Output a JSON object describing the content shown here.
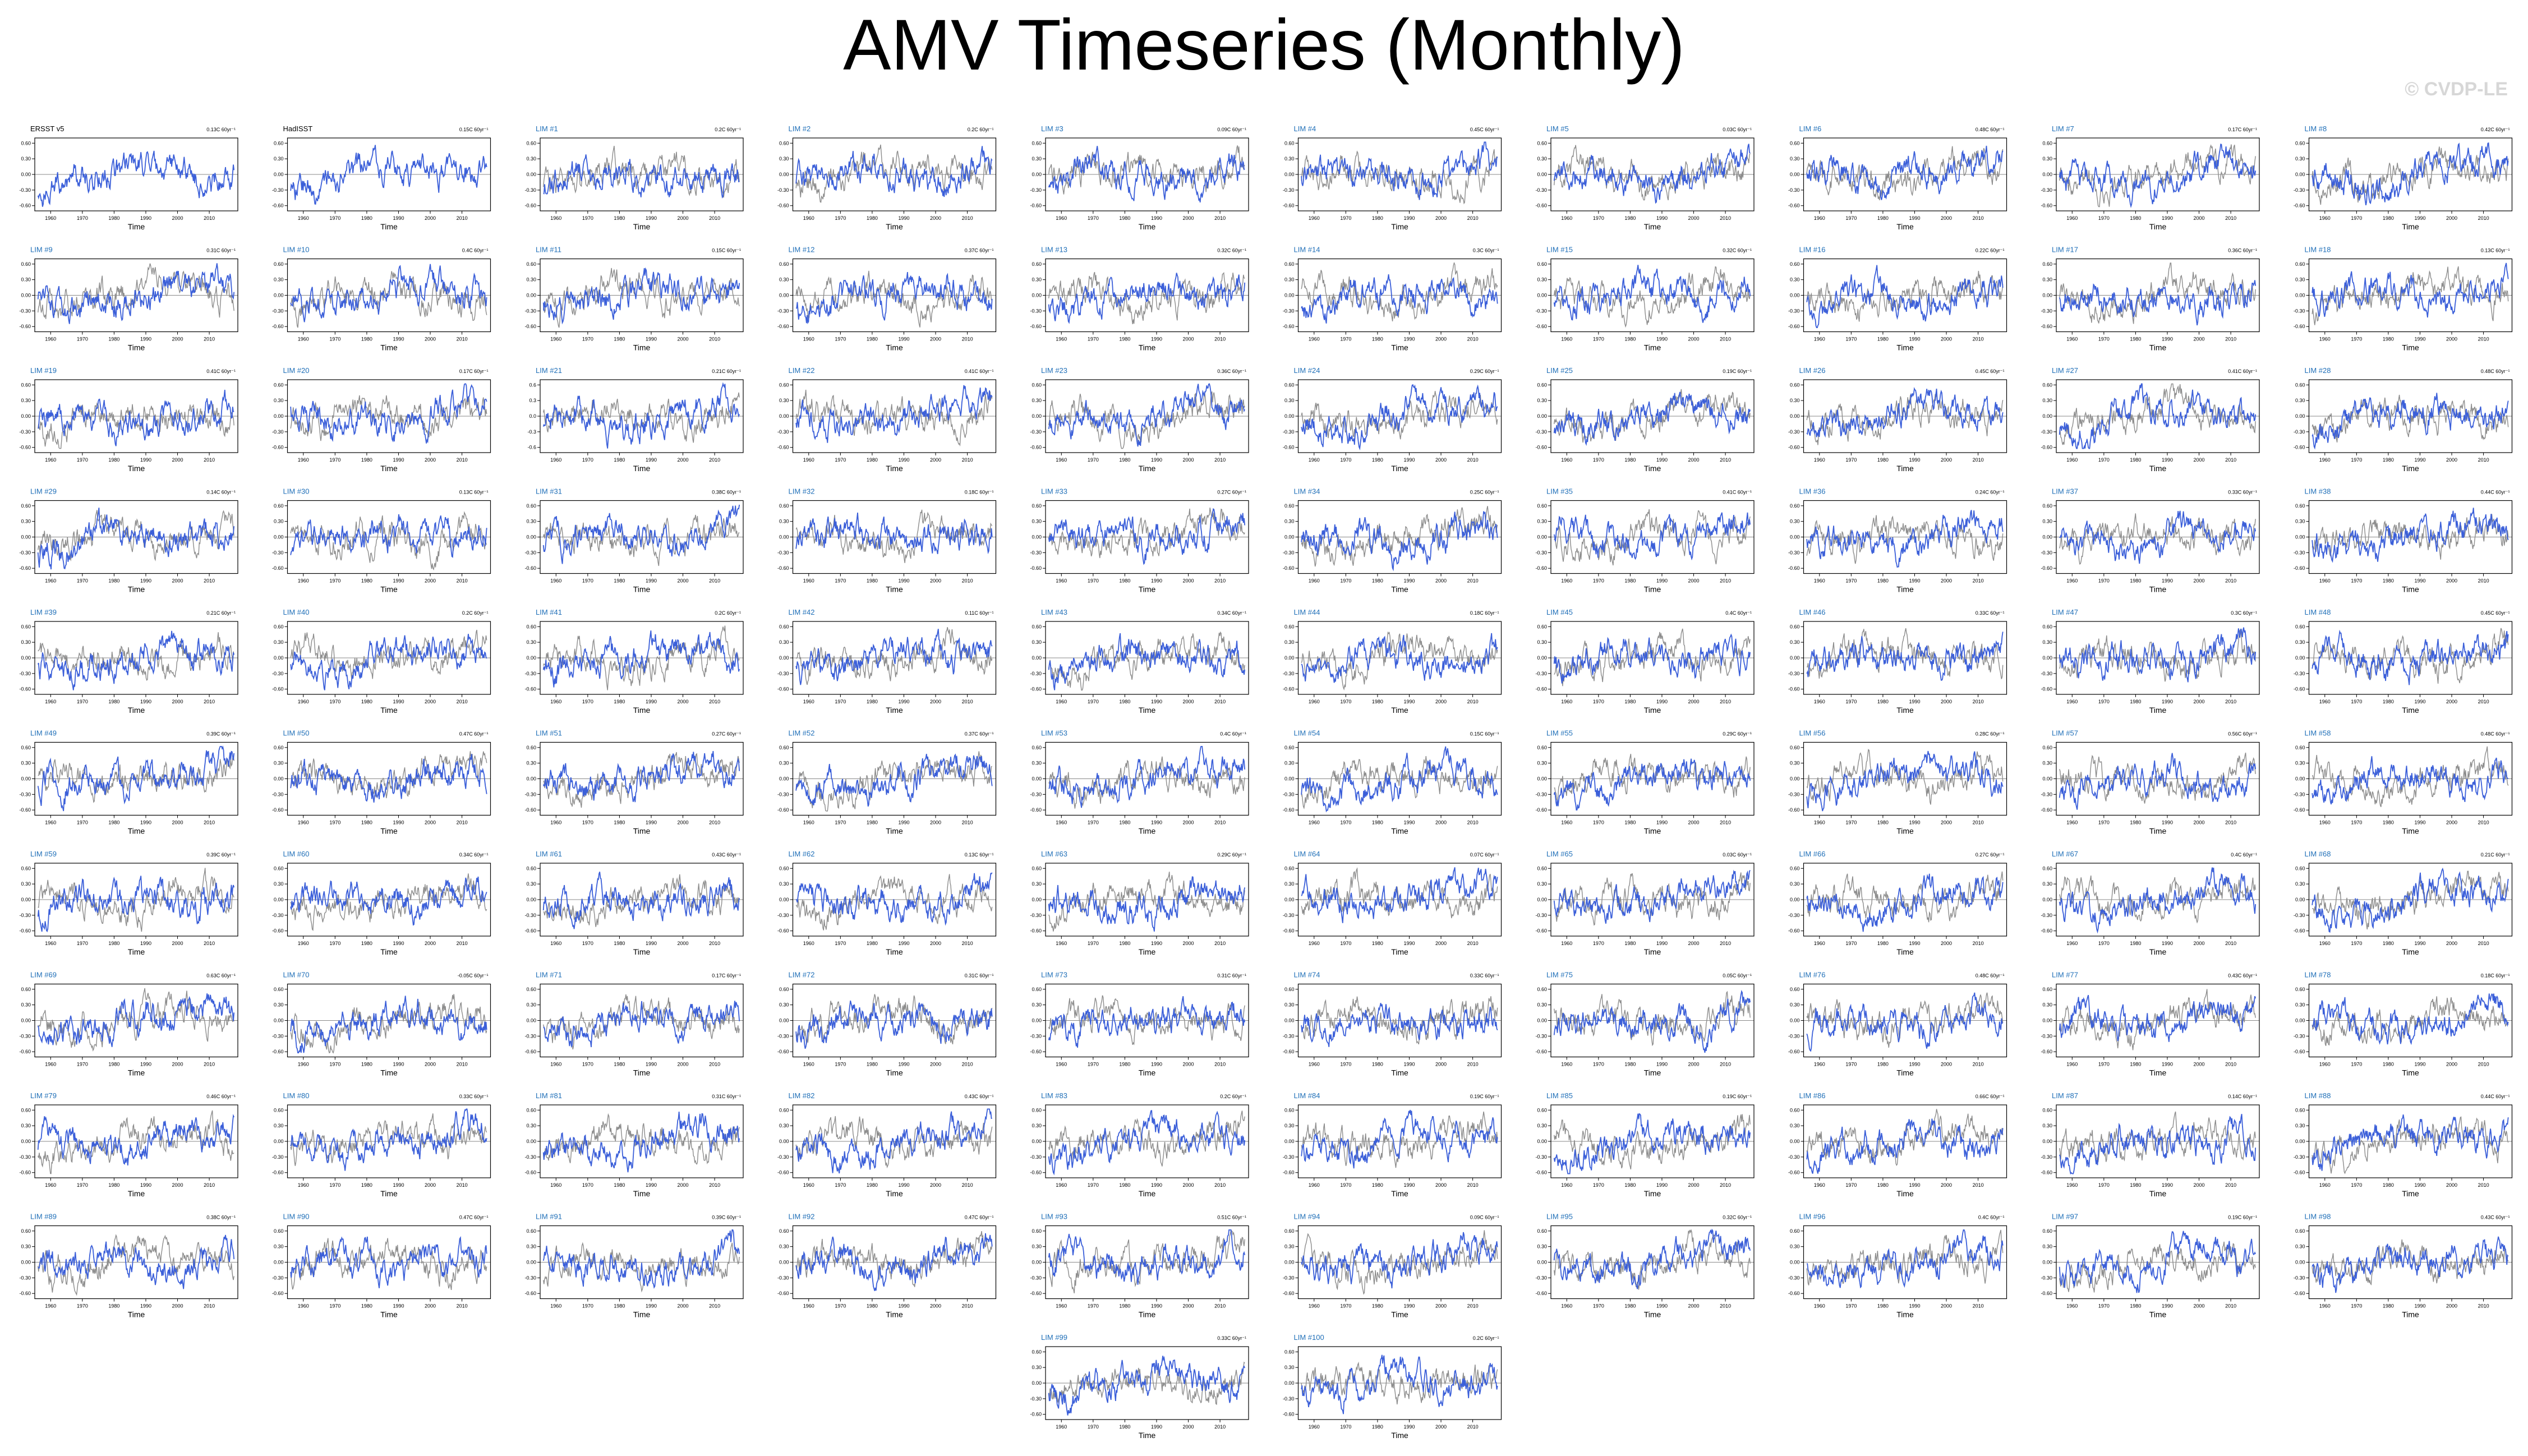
{
  "title": "AMV Timeseries (Monthly)",
  "watermark": "© CVDP-LE",
  "colors": {
    "model_line": "#3b5fd9",
    "obs_line": "#8c8c8c",
    "reference_obs": "#000000",
    "label_lim": "#1f6fb8",
    "axis": "#000000"
  },
  "chart_data": {
    "type": "line",
    "layout": "small multiples",
    "xlabel": "Time",
    "xticks": [
      "1960",
      "1970",
      "1980",
      "1990",
      "2000",
      "2010"
    ],
    "xlim": [
      1955,
      2019
    ],
    "yticks_default": [
      "0.60",
      "0.30",
      "0.00",
      "-0.30",
      "-0.60"
    ],
    "ylim": [
      -0.7,
      0.7
    ],
    "panels": [
      {
        "label": "ERSST v5",
        "trend": "0.13C 60yr⁻¹",
        "yticks": [
          "0.60",
          "0.30",
          "0.00",
          "-0.30",
          "-0.60"
        ]
      },
      {
        "label": "HadISST",
        "trend": "0.15C 60yr⁻¹",
        "yticks": [
          "0.60",
          "0.30",
          "0.00",
          "-0.30",
          "-0.60"
        ]
      },
      {
        "label": "LIM #1",
        "trend": "0.2C 60yr⁻¹"
      },
      {
        "label": "LIM #2",
        "trend": "0.2C 60yr⁻¹"
      },
      {
        "label": "LIM #3",
        "trend": "0.09C 60yr⁻¹"
      },
      {
        "label": "LIM #4",
        "trend": "0.45C 60yr⁻¹"
      },
      {
        "label": "LIM #5",
        "trend": "0.03C 60yr⁻¹"
      },
      {
        "label": "LIM #6",
        "trend": "0.48C 60yr⁻¹"
      },
      {
        "label": "LIM #7",
        "trend": "0.17C 60yr⁻¹"
      },
      {
        "label": "LIM #8",
        "trend": "0.42C 60yr⁻¹"
      },
      {
        "label": "LIM #9",
        "trend": "0.31C 60yr⁻¹"
      },
      {
        "label": "LIM #10",
        "trend": "0.4C 60yr⁻¹"
      },
      {
        "label": "LIM #11",
        "trend": "0.15C 60yr⁻¹"
      },
      {
        "label": "LIM #12",
        "trend": "0.37C 60yr⁻¹"
      },
      {
        "label": "LIM #13",
        "trend": "0.32C 60yr⁻¹"
      },
      {
        "label": "LIM #14",
        "trend": "0.3C 60yr⁻¹"
      },
      {
        "label": "LIM #15",
        "trend": "0.32C 60yr⁻¹"
      },
      {
        "label": "LIM #16",
        "trend": "0.22C 60yr⁻¹"
      },
      {
        "label": "LIM #17",
        "trend": "0.36C 60yr⁻¹"
      },
      {
        "label": "LIM #18",
        "trend": "0.13C 60yr⁻¹"
      },
      {
        "label": "LIM #19",
        "trend": "0.41C 60yr⁻¹"
      },
      {
        "label": "LIM #20",
        "trend": "0.17C 60yr⁻¹"
      },
      {
        "label": "LIM #21",
        "trend": "0.21C 60yr⁻¹",
        "yticks": [
          "0.6",
          "0.3",
          "0.0",
          "-0.3",
          "-0.6"
        ]
      },
      {
        "label": "LIM #22",
        "trend": "0.41C 60yr⁻¹"
      },
      {
        "label": "LIM #23",
        "trend": "0.36C 60yr⁻¹"
      },
      {
        "label": "LIM #24",
        "trend": "0.29C 60yr⁻¹"
      },
      {
        "label": "LIM #25",
        "trend": "0.19C 60yr⁻¹"
      },
      {
        "label": "LIM #26",
        "trend": "0.45C 60yr⁻¹"
      },
      {
        "label": "LIM #27",
        "trend": "0.41C 60yr⁻¹"
      },
      {
        "label": "LIM #28",
        "trend": "0.48C 60yr⁻¹"
      },
      {
        "label": "LIM #29",
        "trend": "0.14C 60yr⁻¹"
      },
      {
        "label": "LIM #30",
        "trend": "0.13C 60yr⁻¹"
      },
      {
        "label": "LIM #31",
        "trend": "0.38C 60yr⁻¹"
      },
      {
        "label": "LIM #32",
        "trend": "0.18C 60yr⁻¹"
      },
      {
        "label": "LIM #33",
        "trend": "0.27C 60yr⁻¹"
      },
      {
        "label": "LIM #34",
        "trend": "0.25C 60yr⁻¹"
      },
      {
        "label": "LIM #35",
        "trend": "0.41C 60yr⁻¹"
      },
      {
        "label": "LIM #36",
        "trend": "0.24C 60yr⁻¹"
      },
      {
        "label": "LIM #37",
        "trend": "0.33C 60yr⁻¹"
      },
      {
        "label": "LIM #38",
        "trend": "0.44C 60yr⁻¹"
      },
      {
        "label": "LIM #39",
        "trend": "0.21C 60yr⁻¹"
      },
      {
        "label": "LIM #40",
        "trend": "0.2C 60yr⁻¹"
      },
      {
        "label": "LIM #41",
        "trend": "0.2C 60yr⁻¹"
      },
      {
        "label": "LIM #42",
        "trend": "0.11C 60yr⁻¹"
      },
      {
        "label": "LIM #43",
        "trend": "0.34C 60yr⁻¹"
      },
      {
        "label": "LIM #44",
        "trend": "0.18C 60yr⁻¹"
      },
      {
        "label": "LIM #45",
        "trend": "0.4C 60yr⁻¹"
      },
      {
        "label": "LIM #46",
        "trend": "0.33C 60yr⁻¹"
      },
      {
        "label": "LIM #47",
        "trend": "0.3C 60yr⁻¹"
      },
      {
        "label": "LIM #48",
        "trend": "0.45C 60yr⁻¹"
      },
      {
        "label": "LIM #49",
        "trend": "0.39C 60yr⁻¹"
      },
      {
        "label": "LIM #50",
        "trend": "0.47C 60yr⁻¹"
      },
      {
        "label": "LIM #51",
        "trend": "0.27C 60yr⁻¹"
      },
      {
        "label": "LIM #52",
        "trend": "0.37C 60yr⁻¹"
      },
      {
        "label": "LIM #53",
        "trend": "0.4C 60yr⁻¹"
      },
      {
        "label": "LIM #54",
        "trend": "0.15C 60yr⁻¹"
      },
      {
        "label": "LIM #55",
        "trend": "0.29C 60yr⁻¹"
      },
      {
        "label": "LIM #56",
        "trend": "0.28C 60yr⁻¹"
      },
      {
        "label": "LIM #57",
        "trend": "0.56C 60yr⁻¹"
      },
      {
        "label": "LIM #58",
        "trend": "0.48C 60yr⁻¹"
      },
      {
        "label": "LIM #59",
        "trend": "0.39C 60yr⁻¹"
      },
      {
        "label": "LIM #60",
        "trend": "0.34C 60yr⁻¹"
      },
      {
        "label": "LIM #61",
        "trend": "0.43C 60yr⁻¹"
      },
      {
        "label": "LIM #62",
        "trend": "0.13C 60yr⁻¹"
      },
      {
        "label": "LIM #63",
        "trend": "0.29C 60yr⁻¹"
      },
      {
        "label": "LIM #64",
        "trend": "0.07C 60yr⁻¹"
      },
      {
        "label": "LIM #65",
        "trend": "0.03C 60yr⁻¹"
      },
      {
        "label": "LIM #66",
        "trend": "0.27C 60yr⁻¹"
      },
      {
        "label": "LIM #67",
        "trend": "0.4C 60yr⁻¹"
      },
      {
        "label": "LIM #68",
        "trend": "0.21C 60yr⁻¹"
      },
      {
        "label": "LIM #69",
        "trend": "0.63C 60yr⁻¹"
      },
      {
        "label": "LIM #70",
        "trend": "-0.05C 60yr⁻¹"
      },
      {
        "label": "LIM #71",
        "trend": "0.17C 60yr⁻¹"
      },
      {
        "label": "LIM #72",
        "trend": "0.31C 60yr⁻¹"
      },
      {
        "label": "LIM #73",
        "trend": "0.31C 60yr⁻¹"
      },
      {
        "label": "LIM #74",
        "trend": "0.33C 60yr⁻¹"
      },
      {
        "label": "LIM #75",
        "trend": "0.05C 60yr⁻¹"
      },
      {
        "label": "LIM #76",
        "trend": "0.48C 60yr⁻¹"
      },
      {
        "label": "LIM #77",
        "trend": "0.43C 60yr⁻¹"
      },
      {
        "label": "LIM #78",
        "trend": "0.18C 60yr⁻¹"
      },
      {
        "label": "LIM #79",
        "trend": "0.46C 60yr⁻¹"
      },
      {
        "label": "LIM #80",
        "trend": "0.33C 60yr⁻¹"
      },
      {
        "label": "LIM #81",
        "trend": "0.31C 60yr⁻¹"
      },
      {
        "label": "LIM #82",
        "trend": "0.43C 60yr⁻¹"
      },
      {
        "label": "LIM #83",
        "trend": "0.2C 60yr⁻¹"
      },
      {
        "label": "LIM #84",
        "trend": "0.19C 60yr⁻¹"
      },
      {
        "label": "LIM #85",
        "trend": "0.19C 60yr⁻¹"
      },
      {
        "label": "LIM #86",
        "trend": "0.66C 60yr⁻¹"
      },
      {
        "label": "LIM #87",
        "trend": "0.14C 60yr⁻¹"
      },
      {
        "label": "LIM #88",
        "trend": "0.44C 60yr⁻¹"
      },
      {
        "label": "LIM #89",
        "trend": "0.38C 60yr⁻¹"
      },
      {
        "label": "LIM #90",
        "trend": "0.47C 60yr⁻¹"
      },
      {
        "label": "LIM #91",
        "trend": "0.39C 60yr⁻¹"
      },
      {
        "label": "LIM #92",
        "trend": "0.47C 60yr⁻¹"
      },
      {
        "label": "LIM #93",
        "trend": "0.51C 60yr⁻¹"
      },
      {
        "label": "LIM #94",
        "trend": "0.09C 60yr⁻¹"
      },
      {
        "label": "LIM #95",
        "trend": "0.32C 60yr⁻¹"
      },
      {
        "label": "LIM #96",
        "trend": "0.4C 60yr⁻¹"
      },
      {
        "label": "LIM #97",
        "trend": "0.19C 60yr⁻¹"
      },
      {
        "label": "LIM #98",
        "trend": "0.43C 60yr⁻¹"
      },
      {
        "label": "LIM #99",
        "trend": "0.33C 60yr⁻¹"
      },
      {
        "label": "LIM #100",
        "trend": "0.2C 60yr⁻¹"
      }
    ]
  }
}
